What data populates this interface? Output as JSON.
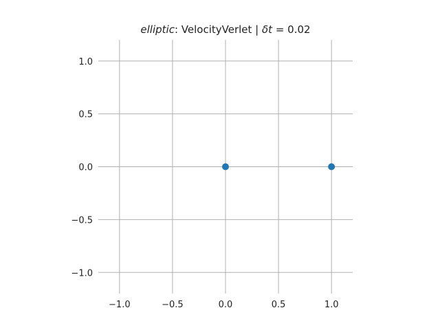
{
  "chart_data": {
    "type": "scatter",
    "title": {
      "prefix": "elliptic",
      "rest": ": VelocityVerlet | ",
      "delta_symbol": "δt",
      "delta_value": " = 0.02"
    },
    "xlabel": "",
    "ylabel": "",
    "xlim": [
      -1.2,
      1.2
    ],
    "ylim": [
      -1.2,
      1.2
    ],
    "grid": true,
    "xticks": [
      -1.0,
      -0.5,
      0.0,
      0.5,
      1.0
    ],
    "yticks": [
      -1.0,
      -0.5,
      0.0,
      0.5,
      1.0
    ],
    "xtick_labels": [
      "−1.0",
      "−0.5",
      "0.0",
      "0.5",
      "1.0"
    ],
    "ytick_labels": [
      "−1.0",
      "−0.5",
      "0.0",
      "0.5",
      "1.0"
    ],
    "points": [
      {
        "x": 0.0,
        "y": 0.0
      },
      {
        "x": 1.0,
        "y": 0.0
      }
    ],
    "marker_color": "#1f77b4"
  }
}
